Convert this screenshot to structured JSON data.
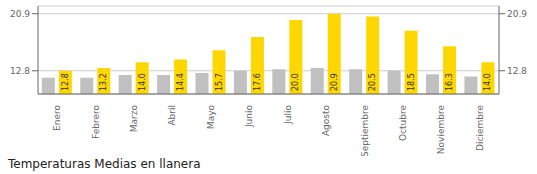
{
  "chart_data": {
    "type": "bar",
    "title": "Temperaturas Medias en llanera",
    "categories": [
      "Enero",
      "Febrero",
      "Marzo",
      "Abril",
      "Mayo",
      "Junio",
      "Julio",
      "Agosto",
      "Septiembre",
      "Octubre",
      "Noviembre",
      "Diciembre"
    ],
    "series": [
      {
        "color": "#C0C0C0",
        "values": [
          11.8,
          11.8,
          12.2,
          12.2,
          12.5,
          12.8,
          13.0,
          13.2,
          13.0,
          12.8,
          12.3,
          12.0
        ]
      },
      {
        "color": "#FFD700",
        "values": [
          12.8,
          13.2,
          14.0,
          14.4,
          15.7,
          17.6,
          20.0,
          20.9,
          20.5,
          18.5,
          16.3,
          14.0
        ],
        "data_labels": true,
        "value_labels": [
          "12.8",
          "13.2",
          "14.0",
          "14.4",
          "15.7",
          "17.6",
          "20.0",
          "20.9",
          "20.5",
          "18.5",
          "16.3",
          "14.0"
        ]
      }
    ],
    "ylim": [
      9.5,
      22.0
    ],
    "yticks": [
      12.8,
      20.9
    ],
    "y2lim": [
      9.5,
      22.0
    ],
    "y2ticks": [
      12.8,
      20.9
    ],
    "grid": true
  }
}
